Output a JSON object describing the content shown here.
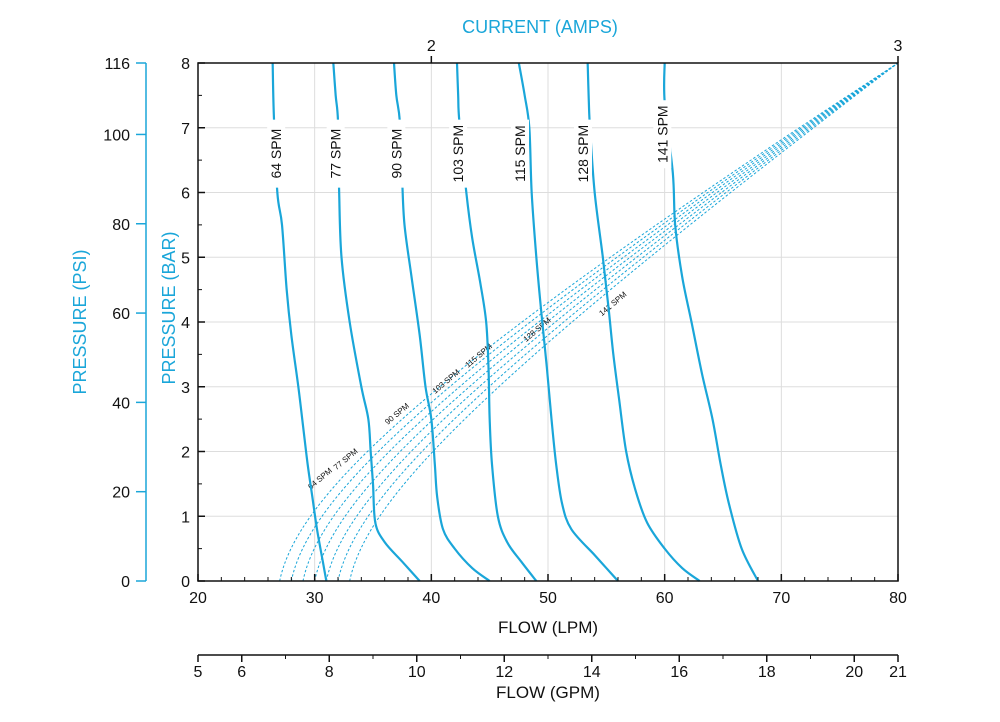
{
  "chart_data": {
    "type": "line",
    "title": "",
    "colors": {
      "series": "#1aa6d9",
      "axis_title_accent": "#1aa6d9",
      "axis": "#111111",
      "grid": "#dddddd"
    },
    "x_lpm": {
      "label": "FLOW (LPM)",
      "range": [
        20,
        80
      ],
      "ticks": [
        "20",
        "30",
        "40",
        "50",
        "60",
        "70",
        "80"
      ]
    },
    "x_gpm": {
      "label": "FLOW (GPM)",
      "range": [
        5,
        21
      ],
      "ticks": [
        "5",
        "6",
        "8",
        "10",
        "12",
        "14",
        "16",
        "18",
        "20",
        "21"
      ]
    },
    "x_current": {
      "label": "CURRENT (AMPS)",
      "tick_labels": [
        "2",
        "3"
      ],
      "tick_lpm": [
        40,
        80
      ]
    },
    "y_bar": {
      "label": "PRESSURE (BAR)",
      "range": [
        0,
        8
      ],
      "ticks": [
        "0",
        "1",
        "2",
        "3",
        "4",
        "5",
        "6",
        "7",
        "8"
      ]
    },
    "y_psi": {
      "label": "PRESSURE (PSI)",
      "range": [
        0,
        116
      ],
      "ticks": [
        "0",
        "20",
        "40",
        "60",
        "80",
        "100",
        "116"
      ]
    },
    "grid": true,
    "series": [
      {
        "name": "64 SPM",
        "label_at": [
          26.7,
          6.6
        ],
        "flow_lpm": [
          26.4,
          26.5,
          26.8,
          27.2,
          27.6,
          28.0,
          28.6,
          29.0,
          29.4,
          29.8,
          30.2,
          30.7,
          31.0
        ],
        "pressure_bar": [
          8,
          7.2,
          6.0,
          5.5,
          4.5,
          3.8,
          3.0,
          2.4,
          1.8,
          1.3,
          0.8,
          0.3,
          0
        ]
      },
      {
        "name": "77 SPM",
        "label_at": [
          31.8,
          6.6
        ],
        "flow_lpm": [
          31.6,
          31.8,
          32.0,
          32.1,
          32.3,
          33.0,
          34.0,
          34.6,
          34.8,
          35.0,
          35.2,
          36.0,
          37.5,
          39.0
        ],
        "pressure_bar": [
          8,
          7.5,
          7.1,
          6.0,
          5.0,
          4.0,
          3.0,
          2.5,
          2.0,
          1.5,
          0.9,
          0.6,
          0.3,
          0
        ]
      },
      {
        "name": "90 SPM",
        "label_at": [
          37.0,
          6.6
        ],
        "flow_lpm": [
          36.8,
          37.0,
          37.3,
          37.5,
          37.7,
          38.3,
          39.0,
          39.5,
          40.0,
          40.3,
          40.5,
          41.0,
          42.0,
          43.5,
          45.0
        ],
        "pressure_bar": [
          8,
          7.5,
          7.1,
          6.2,
          5.5,
          4.7,
          3.8,
          3.0,
          2.5,
          1.8,
          1.3,
          0.8,
          0.5,
          0.2,
          0
        ]
      },
      {
        "name": "103 SPM",
        "label_at": [
          42.3,
          6.6
        ],
        "flow_lpm": [
          42.2,
          42.3,
          42.4,
          43.0,
          43.5,
          44.2,
          44.7,
          44.9,
          45.0,
          45.2,
          45.7,
          46.5,
          47.7,
          49.0
        ],
        "pressure_bar": [
          8,
          7.5,
          7.1,
          6.0,
          5.3,
          4.6,
          4.0,
          3.3,
          2.5,
          1.8,
          1.0,
          0.6,
          0.3,
          0
        ]
      },
      {
        "name": "115 SPM",
        "label_at": [
          47.6,
          6.6
        ],
        "flow_lpm": [
          47.5,
          48.0,
          48.4,
          48.6,
          49.0,
          49.4,
          49.9,
          50.3,
          50.7,
          51.2,
          52.0,
          54.0,
          55.0,
          56.0
        ],
        "pressure_bar": [
          8,
          7.5,
          7.0,
          6.0,
          5.0,
          4.2,
          3.3,
          2.5,
          1.8,
          1.2,
          0.8,
          0.4,
          0.2,
          0
        ]
      },
      {
        "name": "128 SPM",
        "label_at": [
          53.0,
          6.6
        ],
        "flow_lpm": [
          53.4,
          53.5,
          53.6,
          54.0,
          54.7,
          55.2,
          55.6,
          56.1,
          56.7,
          57.5,
          58.5,
          60.0,
          61.5,
          63.0
        ],
        "pressure_bar": [
          8,
          7.4,
          7.0,
          6.0,
          5.0,
          4.2,
          3.5,
          2.8,
          2.0,
          1.4,
          0.9,
          0.5,
          0.2,
          0
        ]
      },
      {
        "name": "141 SPM",
        "label_at": [
          59.8,
          6.9
        ],
        "flow_lpm": [
          60.0,
          60.0,
          60.7,
          60.9,
          61.5,
          62.3,
          63.2,
          64.1,
          64.8,
          65.5,
          66.6,
          68.0
        ],
        "pressure_bar": [
          8,
          7.4,
          6.3,
          5.5,
          4.7,
          4.0,
          3.2,
          2.5,
          1.8,
          1.2,
          0.5,
          0
        ]
      }
    ],
    "current_curves": [
      {
        "name": "64 SPM",
        "flow_lpm_at_0": 27.0,
        "label_at": [
          30.6,
          1.55
        ]
      },
      {
        "name": "77 SPM",
        "flow_lpm_at_0": 28.0,
        "label_at": [
          32.8,
          1.85
        ]
      },
      {
        "name": "90 SPM",
        "flow_lpm_at_0": 29.0,
        "label_at": [
          37.2,
          2.55
        ]
      },
      {
        "name": "103 SPM",
        "flow_lpm_at_0": 30.0,
        "label_at": [
          41.4,
          3.05
        ]
      },
      {
        "name": "115 SPM",
        "flow_lpm_at_0": 31.0,
        "label_at": [
          44.2,
          3.45
        ]
      },
      {
        "name": "128 SPM",
        "flow_lpm_at_0": 32.0,
        "label_at": [
          49.2,
          3.85
        ]
      },
      {
        "name": "141 SPM",
        "flow_lpm_at_0": 33.0,
        "label_at": [
          55.7,
          4.25
        ]
      }
    ]
  }
}
